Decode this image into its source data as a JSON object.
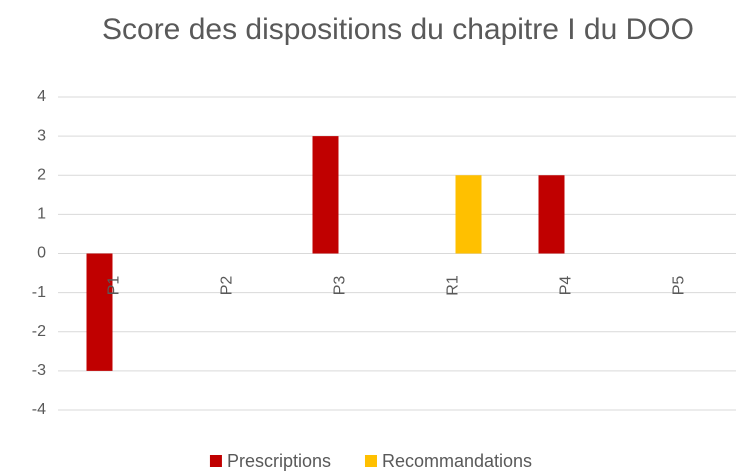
{
  "chart_data": {
    "type": "bar",
    "title": "Score des dispositions du chapitre I du DOO",
    "categories": [
      "P1",
      "P2",
      "P3",
      "R1",
      "P4",
      "P5"
    ],
    "series": [
      {
        "name": "Prescriptions",
        "color": "#c00000",
        "values": [
          -3,
          0,
          3,
          0,
          2,
          0
        ]
      },
      {
        "name": "Recommandations",
        "color": "#ffc000",
        "values": [
          0,
          0,
          0,
          2,
          0,
          0
        ]
      }
    ],
    "ylim": [
      -4,
      4
    ],
    "yticks": [
      -4,
      -3,
      -2,
      -1,
      0,
      1,
      2,
      3,
      4
    ],
    "grid": true,
    "legend": "bottom"
  }
}
